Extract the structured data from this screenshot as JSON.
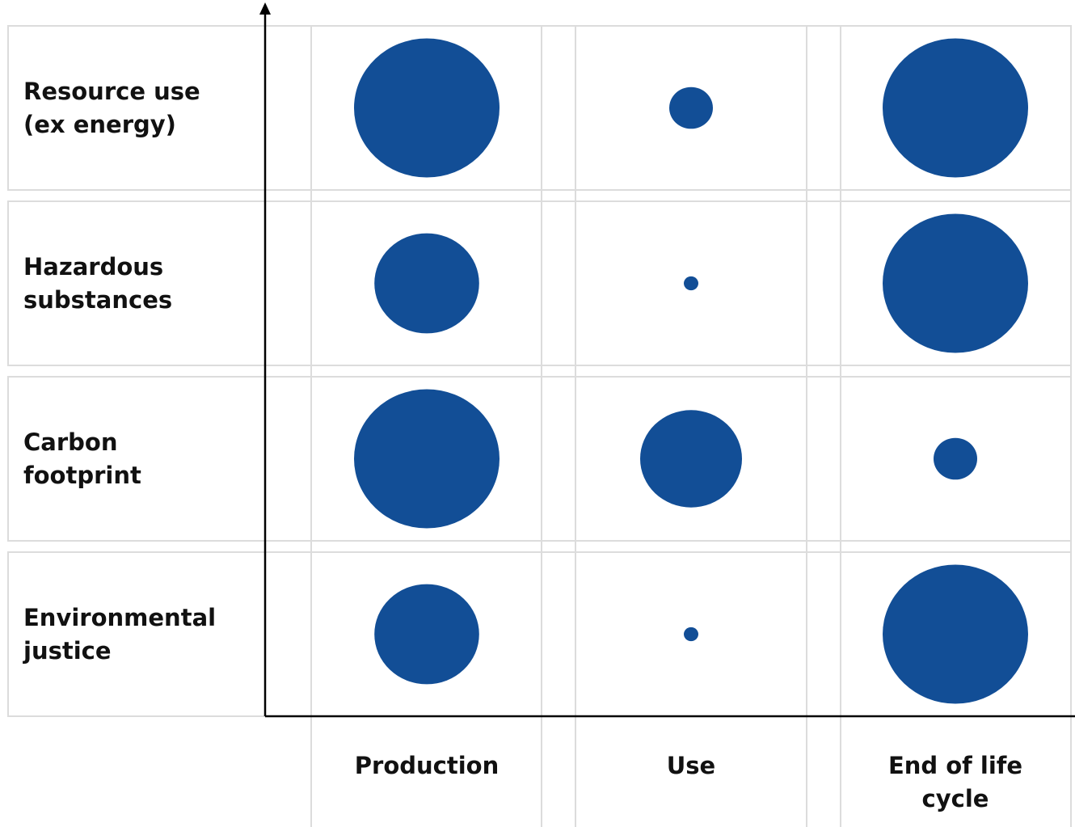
{
  "chart_data": {
    "type": "bubble-matrix",
    "rows": [
      [
        "Resource use",
        "(ex energy)"
      ],
      [
        "Hazardous",
        "substances"
      ],
      [
        "Carbon",
        "footprint"
      ],
      [
        "Environmental",
        "justice"
      ]
    ],
    "columns": [
      [
        "Production"
      ],
      [
        "Use"
      ],
      [
        "End of life",
        "cycle"
      ]
    ],
    "values": [
      [
        1.0,
        0.3,
        1.0
      ],
      [
        0.72,
        0.1,
        1.0
      ],
      [
        1.0,
        0.7,
        0.3
      ],
      [
        0.72,
        0.1,
        1.0
      ]
    ],
    "bubble_color": "#124E96",
    "grid_color": "#DCDCDC",
    "axis_color": "#000000"
  }
}
